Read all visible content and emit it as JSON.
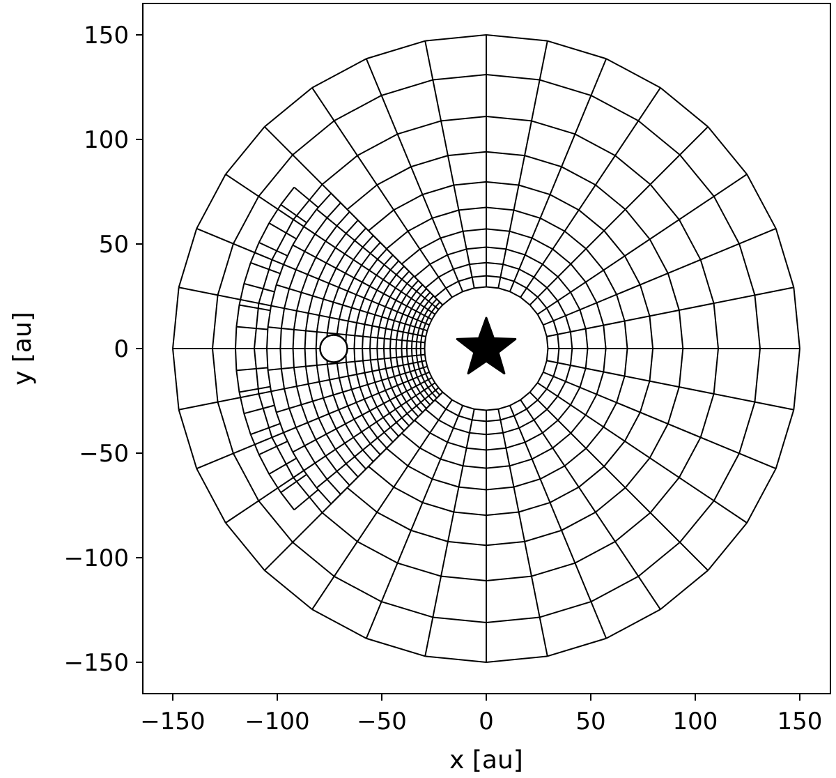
{
  "chart_data": {
    "type": "polar-grid",
    "xlabel": "x [au]",
    "ylabel": "y [au]",
    "xlim": [
      -165,
      165
    ],
    "ylim": [
      -165,
      165
    ],
    "xticks": [
      -150,
      -100,
      -50,
      0,
      50,
      100,
      150
    ],
    "yticks": [
      -150,
      -100,
      -50,
      0,
      50,
      100,
      150
    ],
    "xtick_labels": [
      "−150",
      "−100",
      "−50",
      "0",
      "50",
      "100",
      "150"
    ],
    "ytick_labels": [
      "−150",
      "−100",
      "−50",
      "0",
      "50",
      "100",
      "150"
    ],
    "coarse_grid": {
      "r_inner": 29.5,
      "r_outer": 150,
      "radii": [
        29.5,
        34.8,
        41.1,
        48.5,
        57.2,
        67.5,
        79.7,
        94.1,
        111.0,
        131.0,
        150.0
      ],
      "n_azimuthal": 32
    },
    "refined_region": {
      "theta_range_deg": [
        135,
        225
      ],
      "r_range": [
        29.5,
        105
      ],
      "n_azimuthal": 64,
      "n_radial": 20,
      "outer_partial_ring_r": 120,
      "outer_partial_theta_range_deg": [
        140,
        220
      ]
    },
    "star": {
      "x": 0,
      "y": 0,
      "marker": "star",
      "color": "#000000"
    },
    "planet": {
      "x": -73,
      "y": 0,
      "radius": 6.5,
      "marker": "circle",
      "fill": "#ffffff"
    },
    "grid": false,
    "legend": false
  }
}
